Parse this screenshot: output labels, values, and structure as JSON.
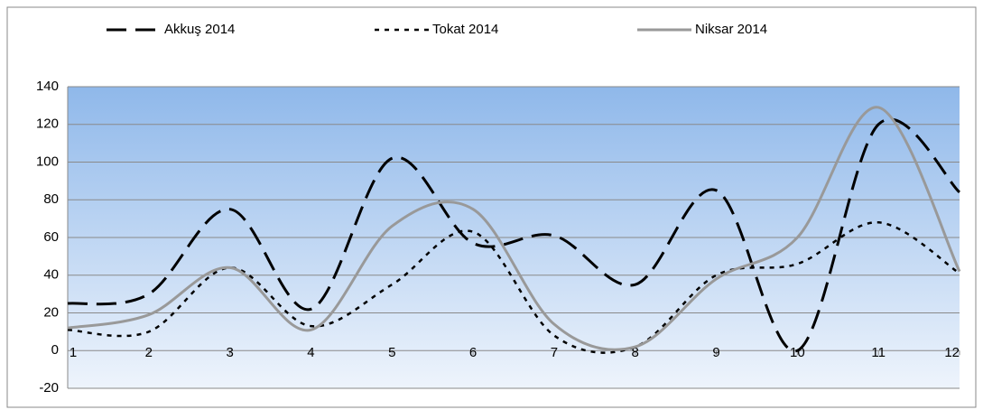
{
  "chart_data": {
    "type": "line",
    "x": [
      1,
      2,
      3,
      4,
      5,
      6,
      7,
      8,
      9,
      10,
      11,
      12
    ],
    "series": [
      {
        "name": "Akkuş 2014",
        "color": "#000000",
        "style": "dashed",
        "values": [
          25,
          30,
          75,
          22,
          102,
          57,
          61,
          35,
          85,
          0,
          120,
          84
        ]
      },
      {
        "name": "Tokat 2014",
        "color": "#000000",
        "style": "dotted",
        "values": [
          11,
          10,
          44,
          13,
          35,
          63,
          8,
          2,
          40,
          46,
          68,
          41
        ]
      },
      {
        "name": "Niksar 2014",
        "color": "#999999",
        "style": "solid",
        "values": [
          12,
          19,
          44,
          11,
          66,
          75,
          14,
          2,
          38,
          60,
          129,
          42
        ]
      }
    ],
    "xlim": [
      1,
      12
    ],
    "xticks": [
      1,
      2,
      3,
      4,
      5,
      6,
      7,
      8,
      9,
      10,
      11,
      12
    ],
    "ylim": [
      -20,
      140
    ],
    "yticks": [
      -20,
      0,
      20,
      40,
      60,
      80,
      100,
      120,
      140
    ],
    "grid": true,
    "legend": "top"
  }
}
